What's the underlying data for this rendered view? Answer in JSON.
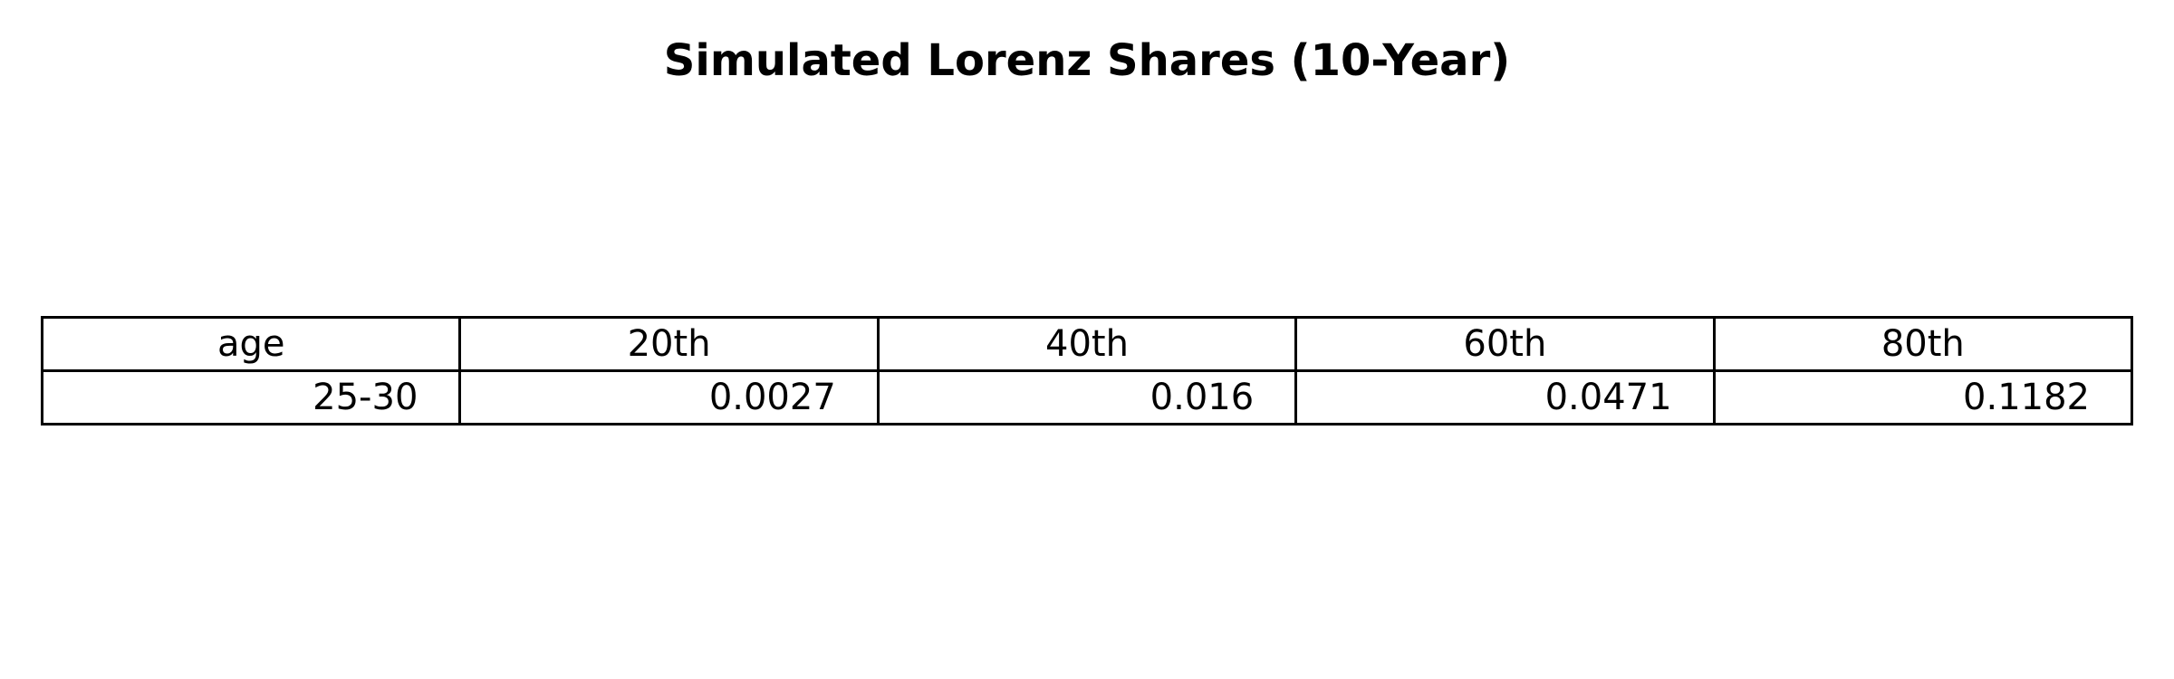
{
  "chart_data": {
    "type": "table",
    "title": "Simulated Lorenz Shares (10-Year)",
    "columns": [
      "age",
      "20th",
      "40th",
      "60th",
      "80th"
    ],
    "rows": [
      [
        "25-30",
        "0.0027",
        "0.016",
        "0.0471",
        "0.1182"
      ]
    ]
  }
}
